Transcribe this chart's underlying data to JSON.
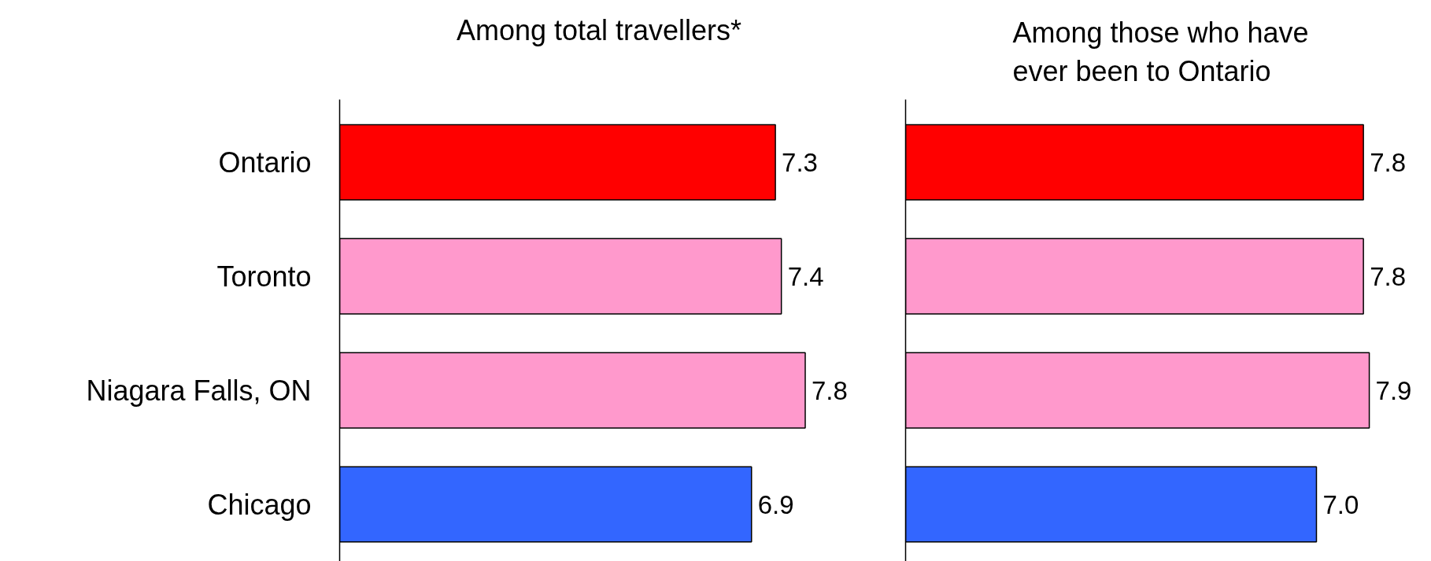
{
  "chart_data": [
    {
      "type": "bar",
      "orientation": "horizontal",
      "title": "Among total travellers*",
      "categories": [
        "Ontario",
        "Toronto",
        "Niagara Falls, ON",
        "Chicago"
      ],
      "values": [
        7.3,
        7.4,
        7.8,
        6.9
      ],
      "colors": [
        "#ff0000",
        "#ff99cc",
        "#ff99cc",
        "#3366ff"
      ],
      "value_labels": [
        "7.3",
        "7.4",
        "7.8",
        "6.9"
      ],
      "tick_labels": "y"
    },
    {
      "type": "bar",
      "orientation": "horizontal",
      "title": "Among those who have\never been to Ontario",
      "categories": [
        null,
        null,
        null,
        null
      ],
      "values": [
        7.8,
        7.8,
        7.9,
        7.0
      ],
      "colors": [
        "#ff0000",
        "#ff99cc",
        "#ff99cc",
        "#3366ff"
      ],
      "value_labels": [
        "7.8",
        "7.8",
        "7.9",
        "7.0"
      ],
      "tick_labels": false
    }
  ]
}
